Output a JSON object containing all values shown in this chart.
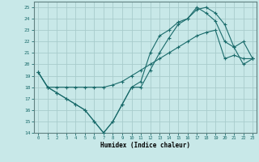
{
  "xlabel": "Humidex (Indice chaleur)",
  "bg_color": "#c8e8e8",
  "grid_color": "#a8cccc",
  "line_color": "#1a6b6b",
  "line1_x": [
    0,
    1,
    2,
    3,
    4,
    5,
    6,
    7,
    8,
    9,
    10,
    11,
    12,
    13,
    14,
    15,
    16,
    17,
    18,
    19,
    20,
    21,
    22,
    23
  ],
  "line1_y": [
    19.3,
    18.0,
    17.5,
    17.0,
    16.5,
    16.0,
    15.0,
    14.0,
    15.0,
    16.5,
    18.0,
    18.0,
    19.5,
    21.0,
    22.3,
    23.5,
    24.0,
    24.8,
    25.0,
    24.5,
    23.5,
    21.5,
    22.0,
    20.5
  ],
  "line2_x": [
    0,
    1,
    2,
    3,
    4,
    5,
    6,
    7,
    8,
    9,
    10,
    11,
    12,
    13,
    14,
    15,
    16,
    17,
    18,
    19,
    20,
    21,
    22,
    23
  ],
  "line2_y": [
    19.3,
    18.0,
    17.5,
    17.0,
    16.5,
    16.0,
    15.0,
    14.0,
    15.0,
    16.5,
    18.0,
    18.5,
    21.0,
    22.5,
    23.0,
    23.7,
    24.0,
    25.0,
    24.5,
    23.8,
    22.0,
    21.5,
    20.0,
    20.5
  ],
  "line3_x": [
    0,
    1,
    2,
    3,
    4,
    5,
    6,
    7,
    8,
    9,
    10,
    11,
    12,
    13,
    14,
    15,
    16,
    17,
    18,
    19,
    20,
    21,
    22,
    23
  ],
  "line3_y": [
    19.3,
    18.0,
    18.0,
    18.0,
    18.0,
    18.0,
    18.0,
    18.0,
    18.2,
    18.5,
    19.0,
    19.5,
    20.0,
    20.5,
    21.0,
    21.5,
    22.0,
    22.5,
    22.8,
    23.0,
    20.5,
    20.8,
    20.5,
    20.5
  ]
}
